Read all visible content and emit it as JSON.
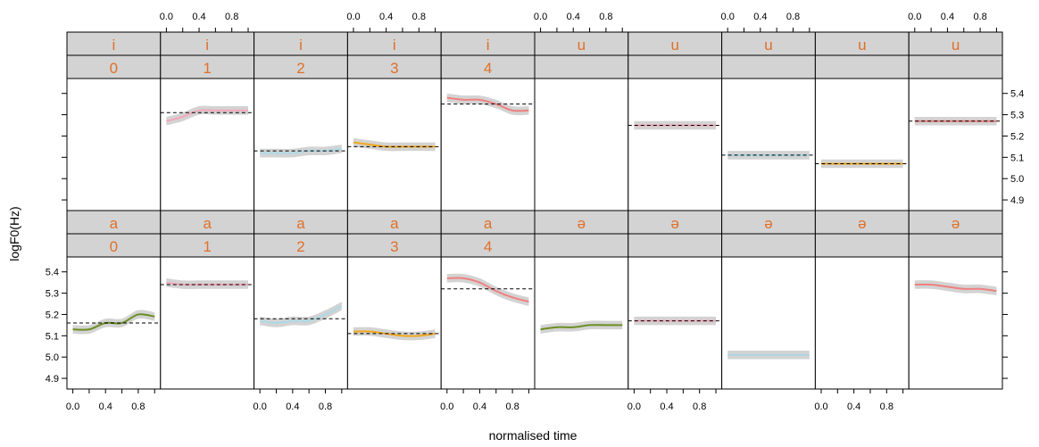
{
  "chart_data": {
    "type": "line",
    "xlabel": "normalised time",
    "ylabel": "logF0(Hz)",
    "xlim": [
      -0.05,
      1.05
    ],
    "ylim": [
      4.85,
      5.47
    ],
    "x_ticks": [
      0.0,
      0.4,
      0.8
    ],
    "x_tick_labels": [
      "0.0",
      "0.4",
      "0.8"
    ],
    "x_minor_ticks": [
      0.0,
      0.2,
      0.4,
      0.6,
      0.8,
      1.0
    ],
    "y_ticks": [
      4.9,
      5.0,
      5.1,
      5.2,
      5.3,
      5.4
    ],
    "y_tick_labels": [
      "4.9",
      "5.0",
      "5.1",
      "5.2",
      "5.3",
      "5.4"
    ],
    "tones": [
      "0",
      "1",
      "2",
      "3",
      "4"
    ],
    "rows": [
      {
        "vowel_labels": [
          "i",
          "i",
          "i",
          "i",
          "i",
          "u",
          "u",
          "u",
          "u",
          "u"
        ],
        "panels": [
          {
            "vowel": "i",
            "tone": "0",
            "y": [],
            "mean": null
          },
          {
            "vowel": "i",
            "tone": "1",
            "y": [
              5.27,
              5.29,
              5.32,
              5.32,
              5.32,
              5.32
            ],
            "mean": 5.31
          },
          {
            "vowel": "i",
            "tone": "2",
            "y": [
              5.12,
              5.12,
              5.12,
              5.13,
              5.13,
              5.14
            ],
            "mean": 5.13
          },
          {
            "vowel": "i",
            "tone": "3",
            "y": [
              5.17,
              5.16,
              5.15,
              5.15,
              5.15,
              5.15
            ],
            "mean": 5.15
          },
          {
            "vowel": "i",
            "tone": "4",
            "y": [
              5.38,
              5.37,
              5.37,
              5.35,
              5.32,
              5.32
            ],
            "mean": 5.35
          },
          {
            "vowel": "u",
            "tone": "0",
            "y": [],
            "mean": null
          },
          {
            "vowel": "u",
            "tone": "1",
            "y": [
              5.25,
              5.25,
              5.25,
              5.25,
              5.25,
              5.25
            ],
            "mean": 5.25
          },
          {
            "vowel": "u",
            "tone": "2",
            "y": [
              5.11,
              5.11,
              5.11,
              5.11,
              5.11,
              5.11
            ],
            "mean": 5.11
          },
          {
            "vowel": "u",
            "tone": "3",
            "y": [
              5.07,
              5.07,
              5.07,
              5.07,
              5.07,
              5.07
            ],
            "mean": 5.07
          },
          {
            "vowel": "u",
            "tone": "4",
            "y": [
              5.27,
              5.27,
              5.27,
              5.27,
              5.27,
              5.27
            ],
            "mean": 5.27
          }
        ]
      },
      {
        "vowel_labels": [
          "a",
          "a",
          "a",
          "a",
          "a",
          "ə",
          "ə",
          "ə",
          "ə",
          "ə"
        ],
        "panels": [
          {
            "vowel": "a",
            "tone": "0",
            "y": [
              5.13,
              5.13,
              5.16,
              5.16,
              5.2,
              5.19
            ],
            "mean": 5.16
          },
          {
            "vowel": "a",
            "tone": "1",
            "y": [
              5.35,
              5.34,
              5.34,
              5.34,
              5.34,
              5.34
            ],
            "mean": 5.34
          },
          {
            "vowel": "a",
            "tone": "2",
            "y": [
              5.17,
              5.16,
              5.17,
              5.17,
              5.2,
              5.24
            ],
            "mean": 5.18
          },
          {
            "vowel": "a",
            "tone": "3",
            "y": [
              5.12,
              5.12,
              5.11,
              5.1,
              5.1,
              5.11
            ],
            "mean": 5.11
          },
          {
            "vowel": "a",
            "tone": "4",
            "y": [
              5.37,
              5.37,
              5.35,
              5.31,
              5.28,
              5.26
            ],
            "mean": 5.32
          },
          {
            "vowel": "ə",
            "tone": "0",
            "y": [
              5.13,
              5.14,
              5.14,
              5.15,
              5.15,
              5.15
            ],
            "mean": null
          },
          {
            "vowel": "ə",
            "tone": "1",
            "y": [
              5.17,
              5.17,
              5.17,
              5.17,
              5.17,
              5.17
            ],
            "mean": 5.17
          },
          {
            "vowel": "ə",
            "tone": "2",
            "y": [
              5.01,
              5.01,
              5.01,
              5.01,
              5.01,
              5.01
            ],
            "mean": null
          },
          {
            "vowel": "ə",
            "tone": "3",
            "y": [],
            "mean": null
          },
          {
            "vowel": "ə",
            "tone": "4",
            "y": [
              5.34,
              5.34,
              5.33,
              5.32,
              5.32,
              5.31
            ],
            "mean": null
          }
        ]
      }
    ],
    "tone_colors": {
      "0": "#6B8E23",
      "1": "#F4A7B9",
      "2": "#ADD8E6",
      "3": "#F2A81D",
      "4": "#F08080"
    },
    "band_color": "#D3D3D3",
    "strip_fill": "#D3D3D3",
    "strip_text_color": "#E0702A",
    "mean_line_style": "dashed"
  }
}
